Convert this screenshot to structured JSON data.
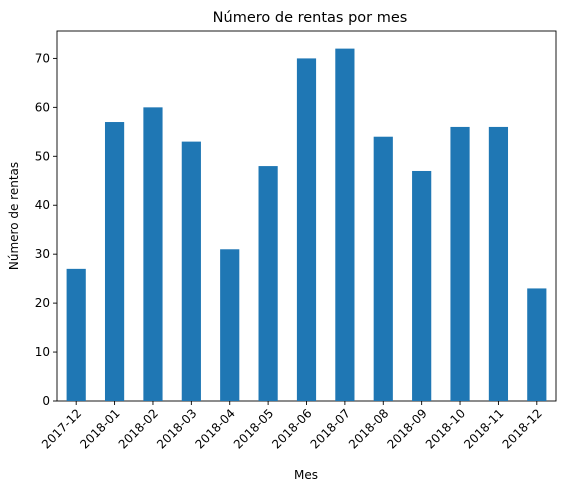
{
  "chart_data": {
    "type": "bar",
    "title": "Número de rentas por mes",
    "xlabel": "Mes",
    "ylabel": "Número de rentas",
    "categories": [
      "2017-12",
      "2018-01",
      "2018-02",
      "2018-03",
      "2018-04",
      "2018-05",
      "2018-06",
      "2018-07",
      "2018-08",
      "2018-09",
      "2018-10",
      "2018-11",
      "2018-12"
    ],
    "values": [
      27,
      57,
      60,
      53,
      31,
      48,
      70,
      72,
      54,
      47,
      56,
      56,
      23
    ],
    "ylim": [
      0,
      75.6
    ],
    "yticks": [
      0,
      10,
      20,
      30,
      40,
      50,
      60,
      70
    ],
    "grid": false,
    "legend": "none",
    "bar_color": "#1f77b4"
  }
}
